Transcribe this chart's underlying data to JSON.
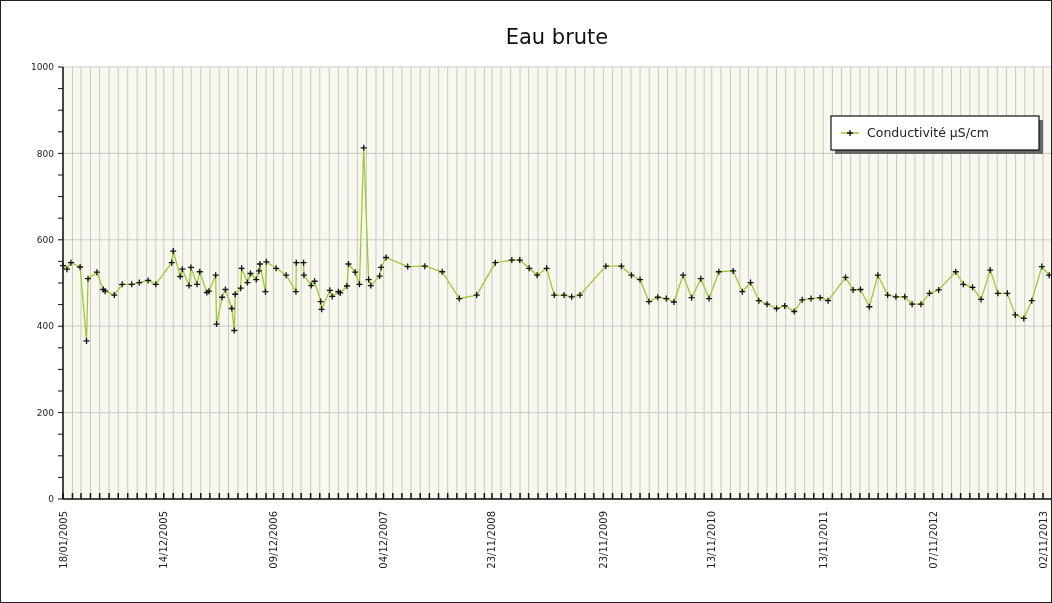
{
  "chart_data": {
    "type": "line",
    "title": "Eau brute",
    "legend": "top right",
    "grid": true,
    "marker": "cross",
    "line_style": "solid",
    "xlim": [
      "2005-01-18",
      "2013-11-28"
    ],
    "ylim": [
      0,
      1000
    ],
    "yticks": [
      0,
      {
        "value": 50,
        "label": null
      },
      {
        "value": 100,
        "label": null
      },
      {
        "value": 150,
        "label": null
      },
      200,
      {
        "value": 250,
        "label": null
      },
      {
        "value": 300,
        "label": null
      },
      {
        "value": 350,
        "label": null
      },
      400,
      {
        "value": 450,
        "label": null
      },
      {
        "value": 500,
        "label": null
      },
      {
        "value": 550,
        "label": null
      },
      600,
      {
        "value": 650,
        "label": null
      },
      {
        "value": 700,
        "label": null
      },
      {
        "value": 750,
        "label": null
      },
      800,
      {
        "value": 850,
        "label": null
      },
      {
        "value": 900,
        "label": null
      },
      {
        "value": 950,
        "label": null
      },
      1000
    ],
    "xticks": [
      {
        "value": "2005-01-18",
        "label": "18/01/2005"
      },
      {
        "value": "2005-02-18",
        "label": null
      },
      {
        "value": "2005-03-18",
        "label": null
      },
      {
        "value": "2005-04-18",
        "label": null
      },
      {
        "value": "2005-05-18",
        "label": null
      },
      {
        "value": "2005-06-18",
        "label": null
      },
      {
        "value": "2005-07-18",
        "label": null
      },
      {
        "value": "2005-08-18",
        "label": null
      },
      {
        "value": "2005-09-18",
        "label": null
      },
      {
        "value": "2005-10-18",
        "label": null
      },
      {
        "value": "2005-11-18",
        "label": null
      },
      {
        "value": "2005-12-14",
        "label": "14/12/2005"
      },
      {
        "value": "2006-01-14",
        "label": null
      },
      {
        "value": "2006-02-14",
        "label": null
      },
      {
        "value": "2006-03-14",
        "label": null
      },
      {
        "value": "2006-04-14",
        "label": null
      },
      {
        "value": "2006-05-14",
        "label": null
      },
      {
        "value": "2006-06-14",
        "label": null
      },
      {
        "value": "2006-07-14",
        "label": null
      },
      {
        "value": "2006-08-14",
        "label": null
      },
      {
        "value": "2006-09-14",
        "label": null
      },
      {
        "value": "2006-10-14",
        "label": null
      },
      {
        "value": "2006-11-14",
        "label": null
      },
      {
        "value": "2006-12-09",
        "label": "09/12/2006"
      },
      {
        "value": "2007-01-09",
        "label": null
      },
      {
        "value": "2007-02-09",
        "label": null
      },
      {
        "value": "2007-03-09",
        "label": null
      },
      {
        "value": "2007-04-09",
        "label": null
      },
      {
        "value": "2007-05-09",
        "label": null
      },
      {
        "value": "2007-06-09",
        "label": null
      },
      {
        "value": "2007-07-09",
        "label": null
      },
      {
        "value": "2007-08-09",
        "label": null
      },
      {
        "value": "2007-09-09",
        "label": null
      },
      {
        "value": "2007-10-09",
        "label": null
      },
      {
        "value": "2007-11-09",
        "label": null
      },
      {
        "value": "2007-12-04",
        "label": "04/12/2007"
      },
      {
        "value": "2008-01-03",
        "label": null
      },
      {
        "value": "2008-02-02",
        "label": null
      },
      {
        "value": "2008-03-03",
        "label": null
      },
      {
        "value": "2008-04-02",
        "label": null
      },
      {
        "value": "2008-05-02",
        "label": null
      },
      {
        "value": "2008-06-01",
        "label": null
      },
      {
        "value": "2008-07-01",
        "label": null
      },
      {
        "value": "2008-07-31",
        "label": null
      },
      {
        "value": "2008-08-30",
        "label": null
      },
      {
        "value": "2008-09-29",
        "label": null
      },
      {
        "value": "2008-10-29",
        "label": null
      },
      {
        "value": "2008-11-23",
        "label": "23/11/2008"
      },
      {
        "value": "2008-12-23",
        "label": null
      },
      {
        "value": "2009-01-23",
        "label": null
      },
      {
        "value": "2009-02-23",
        "label": null
      },
      {
        "value": "2009-03-23",
        "label": null
      },
      {
        "value": "2009-04-23",
        "label": null
      },
      {
        "value": "2009-05-23",
        "label": null
      },
      {
        "value": "2009-06-23",
        "label": null
      },
      {
        "value": "2009-07-23",
        "label": null
      },
      {
        "value": "2009-08-23",
        "label": null
      },
      {
        "value": "2009-09-23",
        "label": null
      },
      {
        "value": "2009-10-23",
        "label": null
      },
      {
        "value": "2009-11-23",
        "label": "23/11/2009"
      },
      {
        "value": "2009-12-23",
        "label": null
      },
      {
        "value": "2010-01-22",
        "label": null
      },
      {
        "value": "2010-02-21",
        "label": null
      },
      {
        "value": "2010-03-23",
        "label": null
      },
      {
        "value": "2010-04-22",
        "label": null
      },
      {
        "value": "2010-05-22",
        "label": null
      },
      {
        "value": "2010-06-21",
        "label": null
      },
      {
        "value": "2010-07-21",
        "label": null
      },
      {
        "value": "2010-08-20",
        "label": null
      },
      {
        "value": "2010-09-19",
        "label": null
      },
      {
        "value": "2010-10-19",
        "label": null
      },
      {
        "value": "2010-11-13",
        "label": "13/11/2010"
      },
      {
        "value": "2010-12-13",
        "label": null
      },
      {
        "value": "2011-01-13",
        "label": null
      },
      {
        "value": "2011-02-13",
        "label": null
      },
      {
        "value": "2011-03-13",
        "label": null
      },
      {
        "value": "2011-04-13",
        "label": null
      },
      {
        "value": "2011-05-13",
        "label": null
      },
      {
        "value": "2011-06-13",
        "label": null
      },
      {
        "value": "2011-07-13",
        "label": null
      },
      {
        "value": "2011-08-13",
        "label": null
      },
      {
        "value": "2011-09-13",
        "label": null
      },
      {
        "value": "2011-10-13",
        "label": null
      },
      {
        "value": "2011-11-13",
        "label": "13/11/2011"
      },
      {
        "value": "2011-12-13",
        "label": null
      },
      {
        "value": "2012-01-12",
        "label": null
      },
      {
        "value": "2012-02-11",
        "label": null
      },
      {
        "value": "2012-03-12",
        "label": null
      },
      {
        "value": "2012-04-11",
        "label": null
      },
      {
        "value": "2012-05-11",
        "label": null
      },
      {
        "value": "2012-06-10",
        "label": null
      },
      {
        "value": "2012-07-10",
        "label": null
      },
      {
        "value": "2012-08-09",
        "label": null
      },
      {
        "value": "2012-09-08",
        "label": null
      },
      {
        "value": "2012-10-08",
        "label": null
      },
      {
        "value": "2012-11-07",
        "label": "07/11/2012"
      },
      {
        "value": "2012-12-07",
        "label": null
      },
      {
        "value": "2013-01-06",
        "label": null
      },
      {
        "value": "2013-02-05",
        "label": null
      },
      {
        "value": "2013-03-07",
        "label": null
      },
      {
        "value": "2013-04-06",
        "label": null
      },
      {
        "value": "2013-05-06",
        "label": null
      },
      {
        "value": "2013-06-05",
        "label": null
      },
      {
        "value": "2013-07-05",
        "label": null
      },
      {
        "value": "2013-08-04",
        "label": null
      },
      {
        "value": "2013-09-03",
        "label": null
      },
      {
        "value": "2013-10-03",
        "label": null
      },
      {
        "value": "2013-11-02",
        "label": "02/11/2013"
      }
    ],
    "series": [
      {
        "name": "Conductivité µS/cm",
        "color": "#99cc33",
        "x": [
          "2005-01-18",
          "2005-01-31",
          "2005-02-13",
          "2005-03-15",
          "2005-04-05",
          "2005-04-10",
          "2005-05-09",
          "2005-05-30",
          "2005-06-05",
          "2005-07-05",
          "2005-07-31",
          "2005-08-31",
          "2005-09-25",
          "2005-10-24",
          "2005-11-18",
          "2006-01-09",
          "2006-01-14",
          "2006-02-06",
          "2006-02-13",
          "2006-03-07",
          "2006-03-13",
          "2006-04-02",
          "2006-04-11",
          "2006-05-04",
          "2006-05-11",
          "2006-06-02",
          "2006-06-05",
          "2006-06-23",
          "2006-07-04",
          "2006-07-25",
          "2006-08-02",
          "2006-08-05",
          "2006-08-23",
          "2006-08-26",
          "2006-09-14",
          "2006-09-24",
          "2006-10-13",
          "2006-10-22",
          "2006-10-25",
          "2006-11-12",
          "2006-11-15",
          "2006-12-17",
          "2007-01-19",
          "2007-02-20",
          "2007-02-21",
          "2007-03-17",
          "2007-03-18",
          "2007-04-11",
          "2007-04-22",
          "2007-05-12",
          "2007-05-15",
          "2007-06-11",
          "2007-06-19",
          "2007-07-09",
          "2007-07-15",
          "2007-08-06",
          "2007-08-11",
          "2007-09-02",
          "2007-09-16",
          "2007-09-30",
          "2007-10-16",
          "2007-10-23",
          "2007-11-21",
          "2007-11-26",
          "2007-12-12",
          "2008-02-21",
          "2008-04-17",
          "2008-06-13",
          "2008-08-08",
          "2008-10-04",
          "2008-12-04",
          "2009-01-27",
          "2009-02-22",
          "2009-03-25",
          "2009-04-20",
          "2009-05-21",
          "2009-06-15",
          "2009-07-17",
          "2009-08-11",
          "2009-09-07",
          "2009-12-01",
          "2010-01-21",
          "2010-02-23",
          "2010-03-23",
          "2010-04-21",
          "2010-05-20",
          "2010-06-17",
          "2010-07-12",
          "2010-08-11",
          "2010-09-08",
          "2010-10-08",
          "2010-11-04",
          "2010-12-06",
          "2011-01-22",
          "2011-02-21",
          "2011-03-20",
          "2011-04-16",
          "2011-05-13",
          "2011-06-13",
          "2011-07-10",
          "2011-08-10",
          "2011-09-05",
          "2011-10-04",
          "2011-11-03",
          "2011-11-29",
          "2012-01-25",
          "2012-02-19",
          "2012-03-14",
          "2012-04-12",
          "2012-05-10",
          "2012-06-11",
          "2012-07-08",
          "2012-08-06",
          "2012-08-30",
          "2012-09-28",
          "2012-10-26",
          "2012-11-25",
          "2013-01-20",
          "2013-02-14",
          "2013-03-16",
          "2013-04-13",
          "2013-05-13",
          "2013-06-07",
          "2013-07-08",
          "2013-08-03",
          "2013-08-31",
          "2013-09-26",
          "2013-10-29",
          "2013-11-22"
        ],
        "values": [
          540,
          532,
          547,
          537,
          366,
          510,
          525,
          485,
          481,
          472,
          497,
          497,
          501,
          506,
          497,
          547,
          574,
          515,
          532,
          494,
          536,
          497,
          526,
          478,
          481,
          518,
          405,
          467,
          485,
          441,
          390,
          474,
          488,
          534,
          501,
          522,
          508,
          528,
          544,
          480,
          549,
          534,
          518,
          480,
          547,
          547,
          518,
          494,
          504,
          457,
          439,
          483,
          469,
          480,
          477,
          493,
          544,
          525,
          497,
          813,
          508,
          494,
          516,
          536,
          559,
          538,
          539,
          526,
          464,
          472,
          547,
          553,
          553,
          534,
          518,
          534,
          472,
          472,
          468,
          472,
          539,
          539,
          518,
          508,
          457,
          467,
          464,
          456,
          518,
          466,
          510,
          464,
          526,
          528,
          480,
          501,
          459,
          451,
          441,
          447,
          434,
          461,
          464,
          466,
          459,
          513,
          484,
          485,
          445,
          518,
          472,
          468,
          468,
          451,
          451,
          476,
          484,
          526,
          497,
          490,
          462,
          530,
          476,
          476,
          426,
          418,
          459,
          538,
          518
        ]
      }
    ]
  }
}
